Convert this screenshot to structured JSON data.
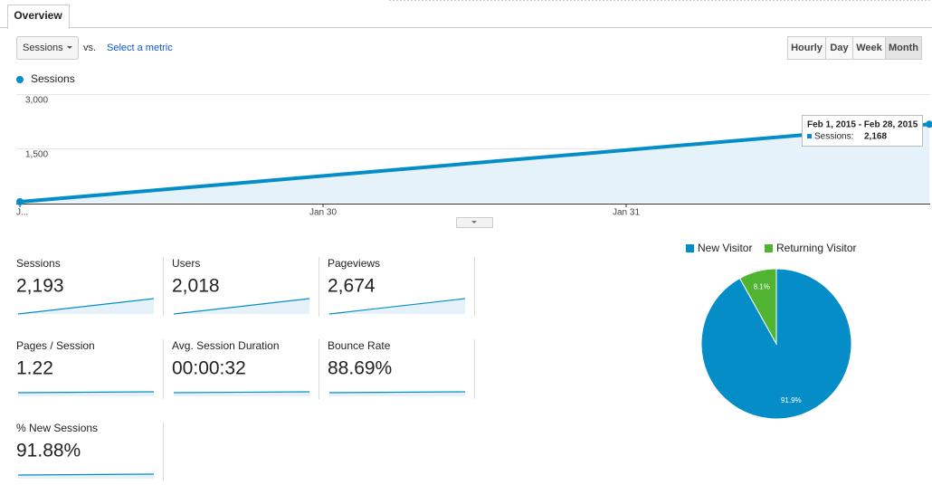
{
  "tab": "Overview",
  "controls": {
    "metric": "Sessions",
    "vs": "vs.",
    "select": "Select a metric",
    "periods": [
      "Hourly",
      "Day",
      "Week",
      "Month"
    ]
  },
  "line_chart": {
    "type": "line",
    "legend": "Sessions",
    "color": "#058dc7",
    "x": [
      0,
      3
    ],
    "values": [
      25,
      2168
    ],
    "xlim": [
      0,
      3
    ],
    "xticks": [
      {
        "value": 0,
        "label": "J..."
      },
      {
        "value": 1,
        "label": "Jan 30"
      },
      {
        "value": 2,
        "label": "Jan 31"
      }
    ],
    "ylim": [
      0,
      3000
    ],
    "yticks": [
      {
        "value": 3000,
        "label": "3,000"
      },
      {
        "value": 1500,
        "label": "1,500"
      }
    ],
    "tooltip": {
      "title": "Feb 1, 2015 - Feb 28, 2015",
      "label": "Sessions:",
      "value_label": "2,168"
    }
  },
  "metrics": [
    {
      "name": "Sessions",
      "value": "2,193"
    },
    {
      "name": "Users",
      "value": "2,018"
    },
    {
      "name": "Pageviews",
      "value": "2,674"
    },
    {
      "name": "Pages / Session",
      "value": "1.22"
    },
    {
      "name": "Avg. Session Duration",
      "value": "00:00:32"
    },
    {
      "name": "Bounce Rate",
      "value": "88.69%"
    },
    {
      "name": "% New Sessions",
      "value": "91.88%"
    }
  ],
  "pie_chart": {
    "type": "pie",
    "categories": [
      "New Visitor",
      "Returning Visitor"
    ],
    "values": [
      91.9,
      8.1
    ],
    "value_labels": [
      "91.9%",
      "8.1%"
    ],
    "colors": [
      "#058dc7",
      "#50b432"
    ]
  }
}
